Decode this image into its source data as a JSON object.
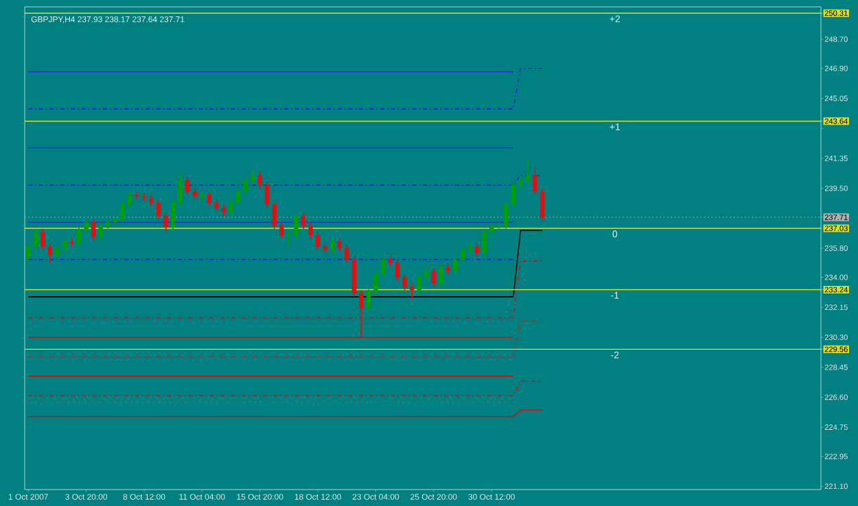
{
  "chart_data": {
    "type": "candlestick",
    "title": "GBPJPY,H4  237.93 238.17 237.64 237.71",
    "categories": [
      "1 Oct 2007",
      null,
      null,
      null,
      null,
      null,
      null,
      null,
      "3 Oct 20:00",
      null,
      null,
      null,
      null,
      null,
      null,
      null,
      "8 Oct 12:00",
      null,
      null,
      null,
      null,
      null,
      null,
      null,
      "11 Oct 04:00",
      null,
      null,
      null,
      null,
      null,
      null,
      null,
      "15 Oct 20:00",
      null,
      null,
      null,
      null,
      null,
      null,
      null,
      "18 Oct 12:00",
      null,
      null,
      null,
      null,
      null,
      null,
      null,
      "23 Oct 04:00",
      null,
      null,
      null,
      null,
      null,
      null,
      null,
      "25 Oct 20:00",
      null,
      null,
      null,
      null,
      null,
      null,
      null,
      "30 Oct 12:00",
      null,
      null,
      null,
      null,
      null,
      null,
      null,
      null,
      null,
      null,
      null,
      null,
      null,
      null,
      null,
      null,
      null,
      null,
      null,
      null,
      null,
      null,
      null,
      null,
      null,
      null,
      null,
      null,
      null,
      null,
      null,
      null,
      null,
      null,
      null,
      null,
      null,
      null,
      null,
      null,
      null,
      null,
      null,
      null,
      null
    ],
    "ohlc": [
      [
        235.2,
        236.1,
        234.9,
        235.9
      ],
      [
        235.9,
        237.0,
        235.7,
        236.8
      ],
      [
        236.8,
        237.0,
        235.7,
        235.9
      ],
      [
        235.9,
        236.1,
        234.9,
        235.4
      ],
      [
        235.4,
        236.0,
        235.2,
        235.8
      ],
      [
        235.8,
        236.4,
        235.6,
        236.2
      ],
      [
        236.2,
        236.4,
        235.9,
        236.1
      ],
      [
        236.1,
        237.1,
        235.9,
        236.9
      ],
      [
        236.9,
        237.6,
        236.7,
        237.4
      ],
      [
        237.4,
        237.6,
        236.3,
        236.5
      ],
      [
        236.5,
        237.4,
        236.3,
        237.2
      ],
      [
        237.2,
        237.6,
        237.0,
        237.4
      ],
      [
        237.4,
        237.8,
        237.2,
        237.6
      ],
      [
        237.6,
        238.7,
        237.4,
        238.5
      ],
      [
        238.5,
        239.3,
        238.3,
        239.1
      ],
      [
        239.1,
        239.3,
        238.8,
        239.0
      ],
      [
        239.0,
        239.2,
        238.7,
        238.9
      ],
      [
        238.9,
        239.1,
        238.4,
        238.6
      ],
      [
        238.6,
        238.8,
        237.6,
        237.8
      ],
      [
        237.8,
        238.0,
        236.8,
        237.1
      ],
      [
        237.1,
        238.8,
        236.9,
        238.6
      ],
      [
        238.6,
        240.4,
        238.4,
        240.0
      ],
      [
        240.0,
        240.2,
        239.1,
        239.3
      ],
      [
        239.3,
        239.5,
        238.8,
        239.0
      ],
      [
        239.0,
        239.3,
        238.8,
        239.1
      ],
      [
        239.1,
        239.3,
        238.4,
        238.6
      ],
      [
        238.6,
        238.8,
        238.1,
        238.3
      ],
      [
        238.3,
        238.5,
        237.8,
        238.0
      ],
      [
        238.0,
        238.8,
        237.8,
        238.6
      ],
      [
        238.6,
        239.5,
        238.4,
        239.3
      ],
      [
        239.3,
        240.2,
        239.1,
        240.0
      ],
      [
        240.0,
        240.6,
        239.8,
        240.3
      ],
      [
        240.3,
        240.5,
        239.5,
        239.7
      ],
      [
        239.7,
        239.9,
        238.3,
        238.5
      ],
      [
        238.5,
        238.7,
        237.0,
        237.2
      ],
      [
        237.2,
        237.4,
        236.4,
        236.6
      ],
      [
        236.6,
        236.8,
        235.9,
        236.6
      ],
      [
        236.6,
        238.0,
        236.4,
        237.8
      ],
      [
        237.8,
        238.0,
        237.0,
        237.2
      ],
      [
        237.2,
        237.4,
        236.4,
        236.6
      ],
      [
        236.6,
        236.8,
        235.7,
        235.9
      ],
      [
        235.9,
        236.1,
        235.5,
        235.7
      ],
      [
        235.7,
        236.4,
        235.5,
        236.2
      ],
      [
        236.2,
        236.4,
        235.6,
        235.8
      ],
      [
        235.8,
        236.0,
        234.9,
        235.1
      ],
      [
        235.1,
        235.3,
        232.8,
        233.0
      ],
      [
        233.0,
        233.2,
        230.3,
        232.1
      ],
      [
        232.1,
        233.3,
        231.9,
        233.1
      ],
      [
        233.1,
        234.4,
        232.9,
        234.2
      ],
      [
        234.2,
        235.3,
        234.0,
        235.1
      ],
      [
        235.1,
        235.3,
        234.7,
        234.9
      ],
      [
        234.9,
        235.1,
        233.8,
        234.0
      ],
      [
        234.0,
        234.2,
        233.2,
        233.4
      ],
      [
        233.4,
        233.6,
        232.7,
        233.2
      ],
      [
        233.2,
        234.2,
        233.0,
        234.0
      ],
      [
        234.0,
        234.6,
        233.8,
        234.4
      ],
      [
        234.4,
        234.6,
        233.4,
        233.6
      ],
      [
        233.6,
        234.8,
        233.4,
        234.6
      ],
      [
        234.6,
        234.8,
        234.2,
        234.4
      ],
      [
        234.4,
        235.3,
        234.2,
        235.1
      ],
      [
        235.1,
        235.9,
        234.9,
        235.7
      ],
      [
        235.7,
        236.1,
        235.5,
        235.9
      ],
      [
        235.9,
        236.1,
        235.3,
        235.5
      ],
      [
        235.5,
        237.0,
        235.3,
        236.8
      ],
      [
        236.8,
        237.4,
        236.6,
        237.2
      ],
      [
        237.2,
        237.4,
        237.0,
        237.2
      ],
      [
        237.2,
        238.7,
        237.0,
        238.5
      ],
      [
        238.5,
        239.9,
        238.3,
        239.7
      ],
      [
        239.7,
        240.2,
        239.5,
        240.0
      ],
      [
        240.0,
        241.3,
        239.8,
        240.3
      ],
      [
        240.3,
        240.8,
        239.1,
        239.3
      ],
      [
        239.3,
        239.5,
        237.5,
        237.7
      ],
      null,
      null,
      null,
      null,
      null,
      null,
      null,
      null,
      null,
      null,
      null,
      null,
      null,
      null,
      null,
      null,
      null,
      null,
      null,
      null,
      null,
      null,
      null,
      null,
      null,
      null,
      null,
      null,
      null,
      null,
      null,
      null,
      null,
      null,
      null,
      null,
      null,
      null
    ],
    "colors": [
      "#00a000",
      "#00a000",
      "#e01010",
      "#e01010",
      "#00a000",
      "#00a000",
      "#e01010",
      "#00a000",
      "#00a000",
      "#e01010",
      "#00a000",
      "#00a000",
      "#00a000",
      "#00a000",
      "#00a000",
      "#e01010",
      "#e01010",
      "#e01010",
      "#e01010",
      "#e01010",
      "#00a000",
      "#00a000",
      "#e01010",
      "#e01010",
      "#00a000",
      "#e01010",
      "#e01010",
      "#e01010",
      "#00a000",
      "#00a000",
      "#00a000",
      "#00a000",
      "#e01010",
      "#e01010",
      "#e01010",
      "#e01010",
      "#00a000",
      "#00a000",
      "#e01010",
      "#e01010",
      "#e01010",
      "#e01010",
      "#00a000",
      "#e01010",
      "#e01010",
      "#e01010",
      "#e01010",
      "#00a000",
      "#00a000",
      "#00a000",
      "#e01010",
      "#e01010",
      "#e01010",
      "#e01010",
      "#00a000",
      "#00a000",
      "#e01010",
      "#00a000",
      "#e01010",
      "#00a000",
      "#00a000",
      "#00a000",
      "#e01010",
      "#00a000",
      "#00a000",
      "#00a000",
      "#00a000",
      "#00a000",
      "#00a000",
      "#00a000",
      "#e01010",
      "#e01010",
      null,
      null,
      null,
      null,
      null,
      null,
      null,
      null,
      null,
      null,
      null,
      null,
      null,
      null,
      null,
      null,
      null,
      null,
      null,
      null,
      null,
      null,
      null,
      null,
      null,
      null,
      null,
      null,
      null,
      null,
      null,
      null,
      null,
      null,
      null,
      null,
      null,
      null
    ],
    "series": [
      {
        "type": "line",
        "color": "#2020e0",
        "line_style": "solid",
        "values": [
          246.7,
          246.7,
          246.7,
          246.7,
          246.7,
          246.7,
          246.7,
          246.7,
          246.7,
          246.7,
          246.7,
          246.7,
          246.7,
          246.7,
          246.7,
          246.7,
          246.7,
          246.7,
          246.7,
          246.7,
          246.7,
          246.7,
          246.7,
          246.7,
          246.7,
          246.7,
          246.7,
          246.7,
          246.7,
          246.7,
          246.7,
          246.7,
          246.7,
          246.7,
          246.7,
          246.7,
          246.7,
          246.7,
          246.7,
          246.7,
          246.7,
          246.7,
          246.7,
          246.7,
          246.7,
          246.7,
          246.7,
          246.7,
          246.7,
          246.7,
          246.7,
          246.7,
          246.7,
          246.7,
          246.7,
          246.7,
          246.7,
          246.7,
          246.7,
          246.7,
          246.7,
          246.7,
          246.7,
          246.7,
          246.7,
          246.7,
          246.7,
          246.7,
          null,
          null,
          null,
          null,
          null,
          null,
          null,
          null,
          null,
          null,
          null,
          null,
          null,
          null,
          null,
          null,
          null,
          null,
          null,
          null,
          null,
          null,
          null,
          null,
          null,
          null,
          null,
          null,
          null,
          null,
          null,
          null,
          null,
          null,
          null,
          null,
          null,
          null,
          null,
          null,
          null,
          null
        ]
      },
      {
        "type": "line",
        "color": "#2020e0",
        "line_style": "dashed",
        "values": [
          244.4,
          244.4,
          244.4,
          244.4,
          244.4,
          244.4,
          244.4,
          244.4,
          244.4,
          244.4,
          244.4,
          244.4,
          244.4,
          244.4,
          244.4,
          244.4,
          244.4,
          244.4,
          244.4,
          244.4,
          244.4,
          244.4,
          244.4,
          244.4,
          244.4,
          244.4,
          244.4,
          244.4,
          244.4,
          244.4,
          244.4,
          244.4,
          244.4,
          244.4,
          244.4,
          244.4,
          244.4,
          244.4,
          244.4,
          244.4,
          244.4,
          244.4,
          244.4,
          244.4,
          244.4,
          244.4,
          244.4,
          244.4,
          244.4,
          244.4,
          244.4,
          244.4,
          244.4,
          244.4,
          244.4,
          244.4,
          244.4,
          244.4,
          244.4,
          244.4,
          244.4,
          244.4,
          244.4,
          244.4,
          244.4,
          244.4,
          244.4,
          244.4,
          246.9,
          246.9,
          246.9,
          246.9,
          null,
          null,
          null,
          null,
          null,
          null,
          null,
          null,
          null,
          null,
          null,
          null,
          null,
          null,
          null,
          null,
          null,
          null,
          null,
          null,
          null,
          null,
          null,
          null,
          null,
          null,
          null,
          null,
          null,
          null,
          null,
          null,
          null,
          null,
          null,
          null,
          null,
          null
        ]
      },
      {
        "type": "line",
        "color": "#2020e0",
        "line_style": "solid",
        "values": [
          242.0,
          242.0,
          242.0,
          242.0,
          242.0,
          242.0,
          242.0,
          242.0,
          242.0,
          242.0,
          242.0,
          242.0,
          242.0,
          242.0,
          242.0,
          242.0,
          242.0,
          242.0,
          242.0,
          242.0,
          242.0,
          242.0,
          242.0,
          242.0,
          242.0,
          242.0,
          242.0,
          242.0,
          242.0,
          242.0,
          242.0,
          242.0,
          242.0,
          242.0,
          242.0,
          242.0,
          242.0,
          242.0,
          242.0,
          242.0,
          242.0,
          242.0,
          242.0,
          242.0,
          242.0,
          242.0,
          242.0,
          242.0,
          242.0,
          242.0,
          242.0,
          242.0,
          242.0,
          242.0,
          242.0,
          242.0,
          242.0,
          242.0,
          242.0,
          242.0,
          242.0,
          242.0,
          242.0,
          242.0,
          242.0,
          242.0,
          242.0,
          242.0,
          null,
          null,
          null,
          null,
          null,
          null,
          null,
          null,
          null,
          null,
          null,
          null,
          null,
          null,
          null,
          null,
          null,
          null,
          null,
          null,
          null,
          null,
          null,
          null,
          null,
          null,
          null,
          null,
          null,
          null,
          null,
          null,
          null,
          null,
          null,
          null,
          null,
          null,
          null,
          null,
          null,
          null
        ]
      },
      {
        "type": "line",
        "color": "#2020e0",
        "line_style": "dashed",
        "values": [
          239.7,
          239.7,
          239.7,
          239.7,
          239.7,
          239.7,
          239.7,
          239.7,
          239.7,
          239.7,
          239.7,
          239.7,
          239.7,
          239.7,
          239.7,
          239.7,
          239.7,
          239.7,
          239.7,
          239.7,
          239.7,
          239.7,
          239.7,
          239.7,
          239.7,
          239.7,
          239.7,
          239.7,
          239.7,
          239.7,
          239.7,
          239.7,
          239.7,
          239.7,
          239.7,
          239.7,
          239.7,
          239.7,
          239.7,
          239.7,
          239.7,
          239.7,
          239.7,
          239.7,
          239.7,
          239.7,
          239.7,
          239.7,
          239.7,
          239.7,
          239.7,
          239.7,
          239.7,
          239.7,
          239.7,
          239.7,
          239.7,
          239.7,
          239.7,
          239.7,
          239.7,
          239.7,
          239.7,
          239.7,
          239.7,
          239.7,
          239.7,
          239.7,
          240.3,
          240.3,
          240.3,
          240.3,
          null,
          null,
          null,
          null,
          null,
          null,
          null,
          null,
          null,
          null,
          null,
          null,
          null,
          null,
          null,
          null,
          null,
          null,
          null,
          null,
          null,
          null,
          null,
          null,
          null,
          null,
          null,
          null,
          null,
          null,
          null,
          null,
          null,
          null,
          null,
          null,
          null,
          null
        ]
      },
      {
        "type": "line",
        "color": "#1040c0",
        "line_style": "solid",
        "values": [
          237.4,
          237.4,
          237.4,
          237.4,
          237.4,
          237.4,
          237.4,
          237.4,
          237.4,
          237.4,
          237.4,
          237.4,
          237.4,
          237.4,
          237.4,
          237.4,
          237.4,
          237.4,
          237.4,
          237.4,
          237.4,
          237.4,
          237.4,
          237.4,
          237.4,
          237.4,
          237.4,
          237.4,
          237.4,
          237.4,
          237.4,
          237.4,
          237.4,
          237.4,
          237.4,
          237.4,
          237.4,
          237.4,
          237.4,
          237.4,
          237.4,
          237.4,
          237.4,
          237.4,
          237.4,
          237.4,
          237.4,
          237.4,
          237.4,
          237.4,
          237.4,
          237.4,
          237.4,
          237.4,
          237.4,
          237.4,
          237.4,
          237.4,
          237.4,
          237.4,
          237.4,
          237.4,
          237.4,
          237.4,
          237.4,
          237.4,
          237.4,
          237.4,
          null,
          null,
          null,
          null,
          null,
          null,
          null,
          null,
          null,
          null,
          null,
          null,
          null,
          null,
          null,
          null,
          null,
          null,
          null,
          null,
          null,
          null,
          null,
          null,
          null,
          null,
          null,
          null,
          null,
          null,
          null,
          null,
          null,
          null,
          null,
          null,
          null,
          null,
          null,
          null,
          null,
          null
        ]
      },
      {
        "type": "line",
        "color": "#2020e0",
        "line_style": "dashed",
        "values": [
          235.1,
          235.1,
          235.1,
          235.1,
          235.1,
          235.1,
          235.1,
          235.1,
          235.1,
          235.1,
          235.1,
          235.1,
          235.1,
          235.1,
          235.1,
          235.1,
          235.1,
          235.1,
          235.1,
          235.1,
          235.1,
          235.1,
          235.1,
          235.1,
          235.1,
          235.1,
          235.1,
          235.1,
          235.1,
          235.1,
          235.1,
          235.1,
          235.1,
          235.1,
          235.1,
          235.1,
          235.1,
          235.1,
          235.1,
          235.1,
          235.1,
          235.1,
          235.1,
          235.1,
          235.1,
          235.1,
          235.1,
          235.1,
          235.1,
          235.1,
          235.1,
          235.1,
          235.1,
          235.1,
          235.1,
          235.1,
          235.1,
          235.1,
          235.1,
          235.1,
          235.1,
          235.1,
          235.1,
          235.1,
          235.1,
          235.1,
          235.1,
          235.1,
          null,
          null,
          null,
          null,
          null,
          null,
          null,
          null,
          null,
          null,
          null,
          null,
          null,
          null,
          null,
          null,
          null,
          null,
          null,
          null,
          null,
          null,
          null,
          null,
          null,
          null,
          null,
          null,
          null,
          null,
          null,
          null,
          null,
          null,
          null,
          null,
          null,
          null,
          null,
          null,
          null,
          null
        ]
      },
      {
        "type": "line",
        "color": "#000000",
        "line_style": "solid",
        "values": [
          232.8,
          232.8,
          232.8,
          232.8,
          232.8,
          232.8,
          232.8,
          232.8,
          232.8,
          232.8,
          232.8,
          232.8,
          232.8,
          232.8,
          232.8,
          232.8,
          232.8,
          232.8,
          232.8,
          232.8,
          232.8,
          232.8,
          232.8,
          232.8,
          232.8,
          232.8,
          232.8,
          232.8,
          232.8,
          232.8,
          232.8,
          232.8,
          232.8,
          232.8,
          232.8,
          232.8,
          232.8,
          232.8,
          232.8,
          232.8,
          232.8,
          232.8,
          232.8,
          232.8,
          232.8,
          232.8,
          232.8,
          232.8,
          232.8,
          232.8,
          232.8,
          232.8,
          232.8,
          232.8,
          232.8,
          232.8,
          232.8,
          232.8,
          232.8,
          232.8,
          232.8,
          232.8,
          232.8,
          232.8,
          232.8,
          232.8,
          232.8,
          232.8,
          236.9,
          236.9,
          236.9,
          236.9,
          null,
          null,
          null,
          null,
          null,
          null,
          null,
          null,
          null,
          null,
          null,
          null,
          null,
          null,
          null,
          null,
          null,
          null,
          null,
          null,
          null,
          null,
          null,
          null,
          null,
          null,
          null,
          null,
          null,
          null,
          null,
          null,
          null,
          null,
          null,
          null,
          null,
          null
        ]
      },
      {
        "type": "line",
        "color": "#d01010",
        "line_style": "dashed",
        "values": [
          231.5,
          231.5,
          231.5,
          231.5,
          231.5,
          231.5,
          231.5,
          231.5,
          231.5,
          231.5,
          231.5,
          231.5,
          231.5,
          231.5,
          231.5,
          231.5,
          231.5,
          231.5,
          231.5,
          231.5,
          231.5,
          231.5,
          231.5,
          231.5,
          231.5,
          231.5,
          231.5,
          231.5,
          231.5,
          231.5,
          231.5,
          231.5,
          231.5,
          231.5,
          231.5,
          231.5,
          231.5,
          231.5,
          231.5,
          231.5,
          231.5,
          231.5,
          231.5,
          231.5,
          231.5,
          231.5,
          231.5,
          231.5,
          231.5,
          231.5,
          231.5,
          231.5,
          231.5,
          231.5,
          231.5,
          231.5,
          231.5,
          231.5,
          231.5,
          231.5,
          231.5,
          231.5,
          231.5,
          231.5,
          231.5,
          231.5,
          231.5,
          231.5,
          235.0,
          235.0,
          235.0,
          235.0,
          null,
          null,
          null,
          null,
          null,
          null,
          null,
          null,
          null,
          null,
          null,
          null,
          null,
          null,
          null,
          null,
          null,
          null,
          null,
          null,
          null,
          null,
          null,
          null,
          null,
          null,
          null,
          null,
          null,
          null,
          null,
          null,
          null,
          null,
          null,
          null,
          null,
          null
        ]
      },
      {
        "type": "line",
        "color": "#d01010",
        "line_style": "solid",
        "values": [
          230.3,
          230.3,
          230.3,
          230.3,
          230.3,
          230.3,
          230.3,
          230.3,
          230.3,
          230.3,
          230.3,
          230.3,
          230.3,
          230.3,
          230.3,
          230.3,
          230.3,
          230.3,
          230.3,
          230.3,
          230.3,
          230.3,
          230.3,
          230.3,
          230.3,
          230.3,
          230.3,
          230.3,
          230.3,
          230.3,
          230.3,
          230.3,
          230.3,
          230.3,
          230.3,
          230.3,
          230.3,
          230.3,
          230.3,
          230.3,
          230.3,
          230.3,
          230.3,
          230.3,
          230.3,
          230.3,
          230.3,
          230.3,
          230.3,
          230.3,
          230.3,
          230.3,
          230.3,
          230.3,
          230.3,
          230.3,
          230.3,
          230.3,
          230.3,
          230.3,
          230.3,
          230.3,
          230.3,
          230.3,
          230.3,
          230.3,
          230.3,
          230.3,
          null,
          null,
          null,
          null,
          null,
          null,
          null,
          null,
          null,
          null,
          null,
          null,
          null,
          null,
          null,
          null,
          null,
          null,
          null,
          null,
          null,
          null,
          null,
          null,
          null,
          null,
          null,
          null,
          null,
          null,
          null,
          null,
          null,
          null,
          null,
          null,
          null,
          null,
          null,
          null,
          null,
          null
        ]
      },
      {
        "type": "line",
        "color": "#a03030",
        "line_style": "dashed",
        "values": [
          229.1,
          229.1,
          229.1,
          229.1,
          229.1,
          229.1,
          229.1,
          229.1,
          229.1,
          229.1,
          229.1,
          229.1,
          229.1,
          229.1,
          229.1,
          229.1,
          229.1,
          229.1,
          229.1,
          229.1,
          229.1,
          229.1,
          229.1,
          229.1,
          229.1,
          229.1,
          229.1,
          229.1,
          229.1,
          229.1,
          229.1,
          229.1,
          229.1,
          229.1,
          229.1,
          229.1,
          229.1,
          229.1,
          229.1,
          229.1,
          229.1,
          229.1,
          229.1,
          229.1,
          229.1,
          229.1,
          229.1,
          229.1,
          229.1,
          229.1,
          229.1,
          229.1,
          229.1,
          229.1,
          229.1,
          229.1,
          229.1,
          229.1,
          229.1,
          229.1,
          229.1,
          229.1,
          229.1,
          229.1,
          229.1,
          229.1,
          229.1,
          229.1,
          231.3,
          231.3,
          231.3,
          231.3,
          null,
          null,
          null,
          null,
          null,
          null,
          null,
          null,
          null,
          null,
          null,
          null,
          null,
          null,
          null,
          null,
          null,
          null,
          null,
          null,
          null,
          null,
          null,
          null,
          null,
          null,
          null,
          null,
          null,
          null,
          null,
          null,
          null,
          null,
          null,
          null,
          null,
          null
        ]
      },
      {
        "type": "line",
        "color": "#d01010",
        "line_style": "solid",
        "values": [
          227.9,
          227.9,
          227.9,
          227.9,
          227.9,
          227.9,
          227.9,
          227.9,
          227.9,
          227.9,
          227.9,
          227.9,
          227.9,
          227.9,
          227.9,
          227.9,
          227.9,
          227.9,
          227.9,
          227.9,
          227.9,
          227.9,
          227.9,
          227.9,
          227.9,
          227.9,
          227.9,
          227.9,
          227.9,
          227.9,
          227.9,
          227.9,
          227.9,
          227.9,
          227.9,
          227.9,
          227.9,
          227.9,
          227.9,
          227.9,
          227.9,
          227.9,
          227.9,
          227.9,
          227.9,
          227.9,
          227.9,
          227.9,
          227.9,
          227.9,
          227.9,
          227.9,
          227.9,
          227.9,
          227.9,
          227.9,
          227.9,
          227.9,
          227.9,
          227.9,
          227.9,
          227.9,
          227.9,
          227.9,
          227.9,
          227.9,
          227.9,
          227.9,
          null,
          null,
          null,
          null,
          null,
          null,
          null,
          null,
          null,
          null,
          null,
          null,
          null,
          null,
          null,
          null,
          null,
          null,
          null,
          null,
          null,
          null,
          null,
          null,
          null,
          null,
          null,
          null,
          null,
          null,
          null,
          null,
          null,
          null,
          null,
          null,
          null,
          null,
          null,
          null,
          null,
          null
        ]
      },
      {
        "type": "line",
        "color": "#d01010",
        "line_style": "dashed",
        "values": [
          226.7,
          226.7,
          226.7,
          226.7,
          226.7,
          226.7,
          226.7,
          226.7,
          226.7,
          226.7,
          226.7,
          226.7,
          226.7,
          226.7,
          226.7,
          226.7,
          226.7,
          226.7,
          226.7,
          226.7,
          226.7,
          226.7,
          226.7,
          226.7,
          226.7,
          226.7,
          226.7,
          226.7,
          226.7,
          226.7,
          226.7,
          226.7,
          226.7,
          226.7,
          226.7,
          226.7,
          226.7,
          226.7,
          226.7,
          226.7,
          226.7,
          226.7,
          226.7,
          226.7,
          226.7,
          226.7,
          226.7,
          226.7,
          226.7,
          226.7,
          226.7,
          226.7,
          226.7,
          226.7,
          226.7,
          226.7,
          226.7,
          226.7,
          226.7,
          226.7,
          226.7,
          226.7,
          226.7,
          226.7,
          226.7,
          226.7,
          226.7,
          226.7,
          227.6,
          227.6,
          227.6,
          227.6,
          null,
          null,
          null,
          null,
          null,
          null,
          null,
          null,
          null,
          null,
          null,
          null,
          null,
          null,
          null,
          null,
          null,
          null,
          null,
          null,
          null,
          null,
          null,
          null,
          null,
          null,
          null,
          null,
          null,
          null,
          null,
          null,
          null,
          null,
          null,
          null,
          null,
          null
        ]
      },
      {
        "type": "line",
        "color": "#d01010",
        "line_style": "solid",
        "values": [
          225.4,
          225.4,
          225.4,
          225.4,
          225.4,
          225.4,
          225.4,
          225.4,
          225.4,
          225.4,
          225.4,
          225.4,
          225.4,
          225.4,
          225.4,
          225.4,
          225.4,
          225.4,
          225.4,
          225.4,
          225.4,
          225.4,
          225.4,
          225.4,
          225.4,
          225.4,
          225.4,
          225.4,
          225.4,
          225.4,
          225.4,
          225.4,
          225.4,
          225.4,
          225.4,
          225.4,
          225.4,
          225.4,
          225.4,
          225.4,
          225.4,
          225.4,
          225.4,
          225.4,
          225.4,
          225.4,
          225.4,
          225.4,
          225.4,
          225.4,
          225.4,
          225.4,
          225.4,
          225.4,
          225.4,
          225.4,
          225.4,
          225.4,
          225.4,
          225.4,
          225.4,
          225.4,
          225.4,
          225.4,
          225.4,
          225.4,
          225.4,
          225.4,
          225.8,
          225.8,
          225.8,
          225.8,
          null,
          null,
          null,
          null,
          null,
          null,
          null,
          null,
          null,
          null,
          null,
          null,
          null,
          null,
          null,
          null,
          null,
          null,
          null,
          null,
          null,
          null,
          null,
          null,
          null,
          null,
          null,
          null,
          null,
          null,
          null,
          null,
          null,
          null,
          null,
          null,
          null,
          null
        ]
      }
    ],
    "ref_lines": [
      {
        "axis": "y",
        "value": 250.31,
        "color": "#d8e020"
      },
      {
        "axis": "y",
        "value": 243.64,
        "color": "#d8e020"
      },
      {
        "axis": "y",
        "value": 237.03,
        "color": "#d8e020"
      },
      {
        "axis": "y",
        "value": 233.24,
        "color": "#d8e020"
      },
      {
        "axis": "y",
        "value": 229.56,
        "color": "#d8e020"
      },
      {
        "axis": "y",
        "value": 237.71,
        "color": "#b0b0b0",
        "line_style": "dotted"
      }
    ],
    "annotations": [
      {
        "text": "+2",
        "y": 250.31
      },
      {
        "text": "+1",
        "y": 243.64
      },
      {
        "text": "0",
        "y": 237.03
      },
      {
        "text": "-1",
        "y": 233.24
      },
      {
        "text": "-2",
        "y": 229.56
      }
    ],
    "ylim": [
      220.9,
      250.7
    ],
    "yticks": [
      {
        "value": 221.1,
        "label": "221.10"
      },
      {
        "value": 222.95,
        "label": "222.95"
      },
      {
        "value": 224.75,
        "label": "224.75"
      },
      {
        "value": 226.6,
        "label": "226.60"
      },
      {
        "value": 228.45,
        "label": "228.45"
      },
      {
        "value": 229.56,
        "label": "229.56"
      },
      {
        "value": 230.3,
        "label": "230.30"
      },
      {
        "value": 232.15,
        "label": "232.15"
      },
      {
        "value": 233.24,
        "label": "233.24"
      },
      {
        "value": 234.0,
        "label": "234.00"
      },
      {
        "value": 235.8,
        "label": "235.80"
      },
      {
        "value": 237.03,
        "label": "237.03"
      },
      {
        "value": 237.71,
        "label": "237.71"
      },
      {
        "value": 239.5,
        "label": "239.50"
      },
      {
        "value": 241.35,
        "label": "241.35"
      },
      {
        "value": 243.2,
        "label": null
      },
      {
        "value": 243.64,
        "label": "243.64"
      },
      {
        "value": 245.05,
        "label": "245.05"
      },
      {
        "value": 246.9,
        "label": "246.90"
      },
      {
        "value": 248.7,
        "label": "248.70"
      },
      {
        "value": 250.31,
        "label": "250.31"
      }
    ]
  }
}
